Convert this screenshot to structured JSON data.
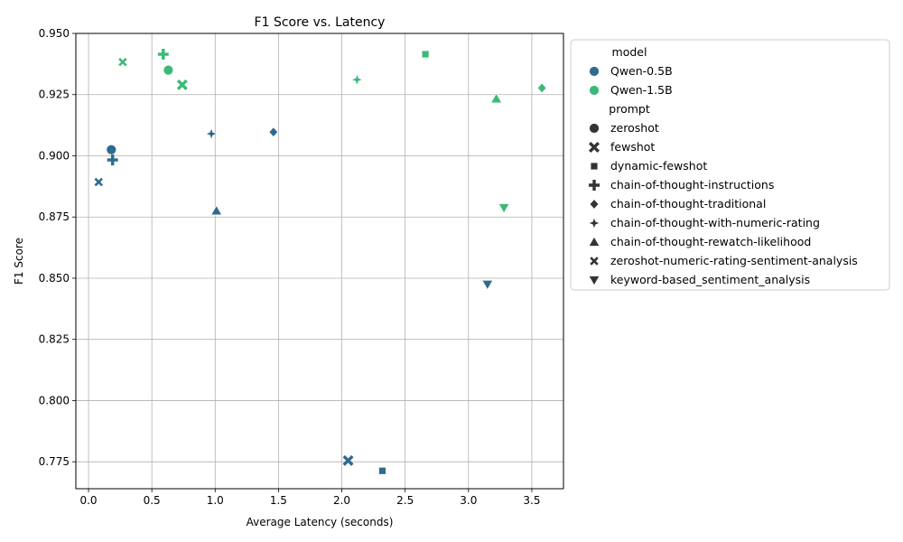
{
  "chart_data": {
    "type": "scatter",
    "title": "F1 Score vs. Latency",
    "xlabel": "Average Latency (seconds)",
    "ylabel": "F1 Score",
    "xlim": [
      -0.1,
      3.75
    ],
    "ylim": [
      0.764,
      0.95
    ],
    "x_ticks": [
      0.0,
      0.5,
      1.0,
      1.5,
      2.0,
      2.5,
      3.0,
      3.5
    ],
    "x_tick_labels": [
      "0.0",
      "0.5",
      "1.0",
      "1.5",
      "2.0",
      "2.5",
      "3.0",
      "3.5"
    ],
    "y_ticks": [
      0.775,
      0.8,
      0.825,
      0.85,
      0.875,
      0.9,
      0.925,
      0.95
    ],
    "y_tick_labels": [
      "0.775",
      "0.800",
      "0.825",
      "0.850",
      "0.875",
      "0.900",
      "0.925",
      "0.950"
    ],
    "grid": true,
    "legend_placement": "outside-right",
    "legend": {
      "model_title": "model",
      "models": [
        {
          "name": "Qwen-0.5B",
          "color": "#2e6b8e"
        },
        {
          "name": "Qwen-1.5B",
          "color": "#3aba76"
        }
      ],
      "prompt_title": "prompt",
      "prompts": [
        {
          "name": "zeroshot",
          "marker": "circle"
        },
        {
          "name": "fewshot",
          "marker": "x"
        },
        {
          "name": "dynamic-fewshot",
          "marker": "square"
        },
        {
          "name": "chain-of-thought-instructions",
          "marker": "plus"
        },
        {
          "name": "chain-of-thought-traditional",
          "marker": "diamond"
        },
        {
          "name": "chain-of-thought-with-numeric-rating",
          "marker": "star4"
        },
        {
          "name": "chain-of-thought-rewatch-likelihood",
          "marker": "triangle-up"
        },
        {
          "name": "zeroshot-numeric-rating-sentiment-analysis",
          "marker": "x-thin"
        },
        {
          "name": "keyword-based_sentiment_analysis",
          "marker": "triangle-down"
        }
      ]
    },
    "points": [
      {
        "model": "Qwen-0.5B",
        "prompt": "zeroshot",
        "x": 0.18,
        "y": 0.9025
      },
      {
        "model": "Qwen-0.5B",
        "prompt": "fewshot",
        "x": 2.05,
        "y": 0.7755
      },
      {
        "model": "Qwen-0.5B",
        "prompt": "dynamic-fewshot",
        "x": 2.32,
        "y": 0.7713
      },
      {
        "model": "Qwen-0.5B",
        "prompt": "chain-of-thought-instructions",
        "x": 0.19,
        "y": 0.8983
      },
      {
        "model": "Qwen-0.5B",
        "prompt": "chain-of-thought-traditional",
        "x": 1.46,
        "y": 0.9097
      },
      {
        "model": "Qwen-0.5B",
        "prompt": "chain-of-thought-with-numeric-rating",
        "x": 0.97,
        "y": 0.909
      },
      {
        "model": "Qwen-0.5B",
        "prompt": "chain-of-thought-rewatch-likelihood",
        "x": 1.01,
        "y": 0.8775
      },
      {
        "model": "Qwen-0.5B",
        "prompt": "zeroshot-numeric-rating-sentiment-analysis",
        "x": 0.08,
        "y": 0.8893
      },
      {
        "model": "Qwen-0.5B",
        "prompt": "keyword-based_sentiment_analysis",
        "x": 3.15,
        "y": 0.8475
      },
      {
        "model": "Qwen-1.5B",
        "prompt": "zeroshot",
        "x": 0.63,
        "y": 0.935
      },
      {
        "model": "Qwen-1.5B",
        "prompt": "fewshot",
        "x": 0.74,
        "y": 0.929
      },
      {
        "model": "Qwen-1.5B",
        "prompt": "dynamic-fewshot",
        "x": 2.66,
        "y": 0.9415
      },
      {
        "model": "Qwen-1.5B",
        "prompt": "chain-of-thought-instructions",
        "x": 0.59,
        "y": 0.9415
      },
      {
        "model": "Qwen-1.5B",
        "prompt": "chain-of-thought-traditional",
        "x": 3.58,
        "y": 0.9277
      },
      {
        "model": "Qwen-1.5B",
        "prompt": "chain-of-thought-with-numeric-rating",
        "x": 2.12,
        "y": 0.9311
      },
      {
        "model": "Qwen-1.5B",
        "prompt": "chain-of-thought-rewatch-likelihood",
        "x": 3.22,
        "y": 0.9233
      },
      {
        "model": "Qwen-1.5B",
        "prompt": "zeroshot-numeric-rating-sentiment-analysis",
        "x": 0.27,
        "y": 0.9383
      },
      {
        "model": "Qwen-1.5B",
        "prompt": "keyword-based_sentiment_analysis",
        "x": 3.28,
        "y": 0.8788
      }
    ]
  }
}
